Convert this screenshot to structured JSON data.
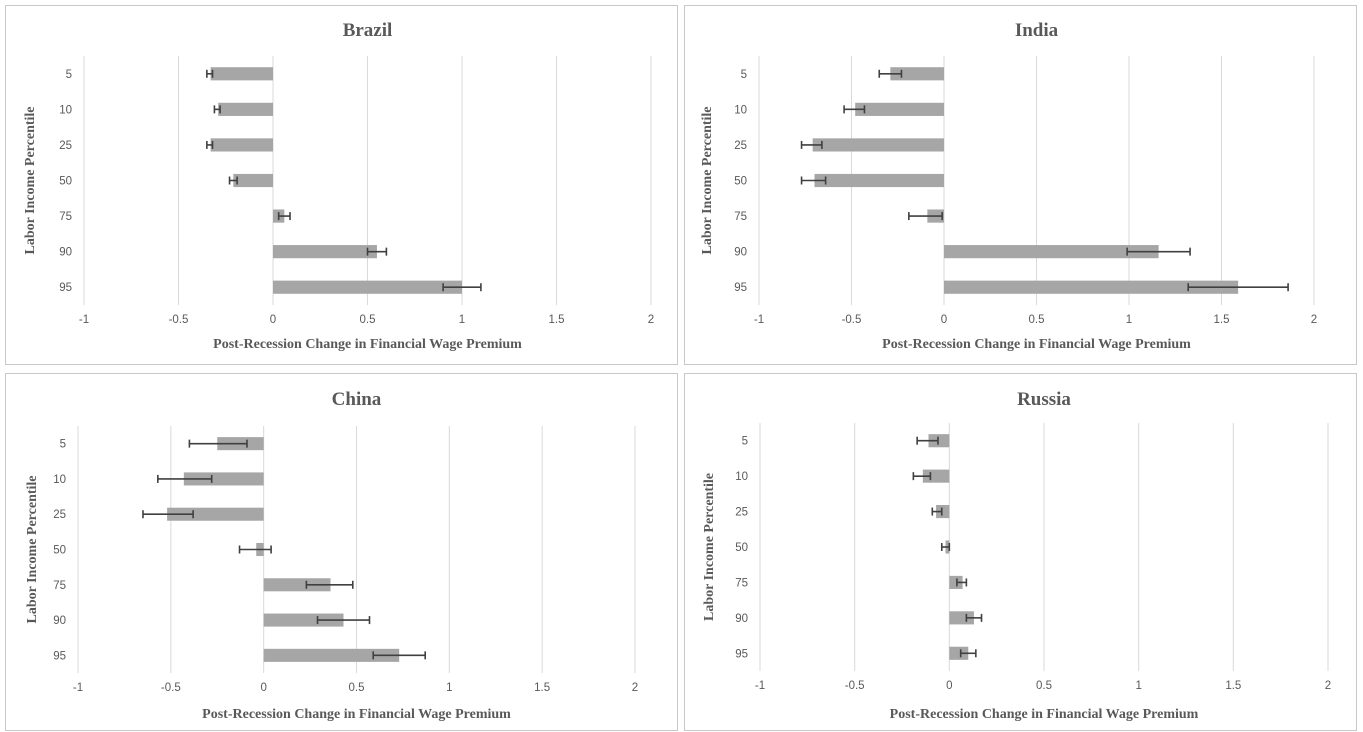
{
  "chart_data": [
    {
      "type": "bar",
      "orientation": "horizontal",
      "title": "Brazil",
      "xlabel": "Post-Recession Change in Financial Wage Premium",
      "ylabel": "Labor Income Percentile",
      "categories": [
        "5",
        "10",
        "25",
        "50",
        "75",
        "90",
        "95"
      ],
      "values": [
        -0.33,
        -0.29,
        -0.33,
        -0.21,
        0.06,
        0.55,
        1.0
      ],
      "error_bars": [
        [
          -0.35,
          -0.32
        ],
        [
          -0.31,
          -0.28
        ],
        [
          -0.35,
          -0.32
        ],
        [
          -0.23,
          -0.19
        ],
        [
          0.03,
          0.09
        ],
        [
          0.5,
          0.6
        ],
        [
          0.9,
          1.1
        ]
      ],
      "xlim": [
        -1,
        2
      ],
      "xticks": [
        "-1",
        "-0.5",
        "0",
        "0.5",
        "1",
        "1.5",
        "2"
      ],
      "grid": true,
      "bar_color": "#a6a6a6",
      "error_color": "#404040"
    },
    {
      "type": "bar",
      "orientation": "horizontal",
      "title": "India",
      "xlabel": "Post-Recession Change in Financial Wage Premium",
      "ylabel": "Labor Income Percentile",
      "categories": [
        "5",
        "10",
        "25",
        "50",
        "75",
        "90",
        "95"
      ],
      "values": [
        -0.29,
        -0.48,
        -0.71,
        -0.7,
        -0.09,
        1.16,
        1.59
      ],
      "error_bars": [
        [
          -0.35,
          -0.23
        ],
        [
          -0.54,
          -0.43
        ],
        [
          -0.77,
          -0.66
        ],
        [
          -0.77,
          -0.64
        ],
        [
          -0.19,
          -0.01
        ],
        [
          0.99,
          1.33
        ],
        [
          1.32,
          1.86
        ]
      ],
      "xlim": [
        -1,
        2
      ],
      "xticks": [
        "-1",
        "-0.5",
        "0",
        "0.5",
        "1",
        "1.5",
        "2"
      ],
      "grid": true,
      "bar_color": "#a6a6a6",
      "error_color": "#404040"
    },
    {
      "type": "bar",
      "orientation": "horizontal",
      "title": "China",
      "xlabel": "Post-Recession Change in Financial Wage Premium",
      "ylabel": "Labor Income Percentile",
      "categories": [
        "5",
        "10",
        "25",
        "50",
        "75",
        "90",
        "95"
      ],
      "values": [
        -0.25,
        -0.43,
        -0.52,
        -0.04,
        0.36,
        0.43,
        0.73
      ],
      "error_bars": [
        [
          -0.4,
          -0.09
        ],
        [
          -0.57,
          -0.28
        ],
        [
          -0.65,
          -0.38
        ],
        [
          -0.13,
          0.04
        ],
        [
          0.23,
          0.48
        ],
        [
          0.29,
          0.57
        ],
        [
          0.59,
          0.87
        ]
      ],
      "xlim": [
        -1,
        2
      ],
      "xticks": [
        "-1",
        "-0.5",
        "0",
        "0.5",
        "1",
        "1.5",
        "2"
      ],
      "grid": true,
      "bar_color": "#a6a6a6",
      "error_color": "#404040"
    },
    {
      "type": "bar",
      "orientation": "horizontal",
      "title": "Russia",
      "xlabel": "Post-Recession Change in Financial Wage Premium",
      "ylabel": "Labor Income Percentile",
      "categories": [
        "5",
        "10",
        "25",
        "50",
        "75",
        "90",
        "95"
      ],
      "values": [
        -0.11,
        -0.14,
        -0.07,
        -0.02,
        0.07,
        0.13,
        0.1
      ],
      "error_bars": [
        [
          -0.17,
          -0.06
        ],
        [
          -0.19,
          -0.1
        ],
        [
          -0.09,
          -0.04
        ],
        [
          -0.04,
          0.0
        ],
        [
          0.04,
          0.09
        ],
        [
          0.09,
          0.17
        ],
        [
          0.06,
          0.14
        ]
      ],
      "xlim": [
        -1,
        2
      ],
      "xticks": [
        "-1",
        "-0.5",
        "0",
        "0.5",
        "1",
        "1.5",
        "2"
      ],
      "grid": true,
      "bar_color": "#a6a6a6",
      "error_color": "#404040"
    }
  ]
}
